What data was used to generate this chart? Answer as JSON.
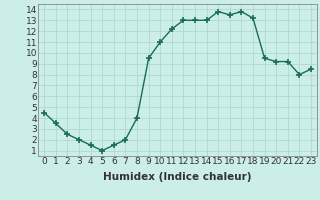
{
  "x": [
    0,
    1,
    2,
    3,
    4,
    5,
    6,
    7,
    8,
    9,
    10,
    11,
    12,
    13,
    14,
    15,
    16,
    17,
    18,
    19,
    20,
    21,
    22,
    23
  ],
  "y": [
    4.5,
    3.5,
    2.5,
    2.0,
    1.5,
    1.0,
    1.5,
    2.0,
    4.0,
    9.5,
    11.0,
    12.2,
    13.0,
    13.0,
    13.0,
    13.8,
    13.5,
    13.8,
    13.2,
    9.5,
    9.2,
    9.2,
    8.0,
    8.5
  ],
  "line_color": "#1a6b5a",
  "marker": "+",
  "marker_size": 4,
  "marker_linewidth": 1.2,
  "bg_color": "#cceee8",
  "grid_color": "#b0d8d0",
  "xlabel": "Humidex (Indice chaleur)",
  "xlim": [
    -0.5,
    23.5
  ],
  "ylim": [
    0.5,
    14.5
  ],
  "xticks": [
    0,
    1,
    2,
    3,
    4,
    5,
    6,
    7,
    8,
    9,
    10,
    11,
    12,
    13,
    14,
    15,
    16,
    17,
    18,
    19,
    20,
    21,
    22,
    23
  ],
  "yticks": [
    1,
    2,
    3,
    4,
    5,
    6,
    7,
    8,
    9,
    10,
    11,
    12,
    13,
    14
  ],
  "xtick_labels": [
    "0",
    "1",
    "2",
    "3",
    "4",
    "5",
    "6",
    "7",
    "8",
    "9",
    "10",
    "11",
    "12",
    "13",
    "14",
    "15",
    "16",
    "17",
    "18",
    "19",
    "20",
    "21",
    "22",
    "23"
  ],
  "ytick_labels": [
    "1",
    "2",
    "3",
    "4",
    "5",
    "6",
    "7",
    "8",
    "9",
    "10",
    "11",
    "12",
    "13",
    "14"
  ],
  "tick_fontsize": 6.5,
  "xlabel_fontsize": 7.5,
  "tick_color": "#333333",
  "spine_color": "#888888",
  "linewidth": 1.0
}
